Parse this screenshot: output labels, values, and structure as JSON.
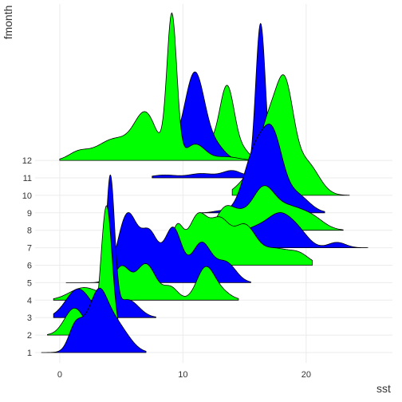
{
  "chart_data": {
    "type": "ridgeline",
    "xlabel": "sst",
    "ylabel": "fmonth",
    "xlim": [
      -2,
      27
    ],
    "x_ticks": [
      0,
      10,
      20
    ],
    "categories": [
      "1",
      "2",
      "3",
      "4",
      "5",
      "6",
      "7",
      "8",
      "9",
      "10",
      "11",
      "12"
    ],
    "grid": true,
    "fill_colors": [
      "#0000FF",
      "#00FF00"
    ],
    "series": [
      {
        "category": "1",
        "fill": "#0000FF",
        "range": [
          -1.5,
          7.0
        ],
        "peaks": [
          [
            1.2,
            0.45,
            0.5
          ],
          [
            2.3,
            0.82,
            0.9
          ],
          [
            3.2,
            0.86,
            0.6
          ],
          [
            4.1,
            0.8,
            0.8
          ],
          [
            5.3,
            0.35,
            0.8
          ]
        ]
      },
      {
        "category": "2",
        "fill": "#00FF00",
        "range": [
          -1.0,
          5.2
        ],
        "peaks": [
          [
            1.2,
            0.75,
            0.8
          ],
          [
            3.8,
            3.6,
            0.45
          ]
        ]
      },
      {
        "category": "3",
        "fill": "#0000FF",
        "range": [
          -0.5,
          7.8
        ],
        "peaks": [
          [
            1.5,
            0.8,
            1.0
          ],
          [
            4.1,
            3.8,
            0.35
          ],
          [
            5.5,
            0.5,
            0.9
          ]
        ]
      },
      {
        "category": "4",
        "fill": "#00FF00",
        "range": [
          -0.5,
          14.5
        ],
        "peaks": [
          [
            2.0,
            0.35,
            1.2
          ],
          [
            5.0,
            0.9,
            0.7
          ],
          [
            7.0,
            1.0,
            0.8
          ],
          [
            9.0,
            0.35,
            0.6
          ],
          [
            11.8,
            0.85,
            0.7
          ],
          [
            13.0,
            0.25,
            0.8
          ]
        ]
      },
      {
        "category": "5",
        "fill": "#0000FF",
        "range": [
          0.5,
          15.5
        ],
        "peaks": [
          [
            5.5,
            1.9,
            0.8
          ],
          [
            7.3,
            1.3,
            0.7
          ],
          [
            9.2,
            1.5,
            0.7
          ],
          [
            11.5,
            1.1,
            0.8
          ],
          [
            13.5,
            0.55,
            0.8
          ]
        ]
      },
      {
        "category": "6",
        "fill": "#00FF00",
        "range": [
          8.5,
          20.5
        ],
        "peaks": [
          [
            9.5,
            1.0,
            0.5
          ],
          [
            11.2,
            1.35,
            0.8
          ],
          [
            13.0,
            1.15,
            0.8
          ],
          [
            15.0,
            1.05,
            0.9
          ],
          [
            17.5,
            0.45,
            1.2
          ],
          [
            19.5,
            0.25,
            0.8
          ]
        ]
      },
      {
        "category": "7",
        "fill": "#0000FF",
        "range": [
          12.5,
          25.0
        ],
        "peaks": [
          [
            14.0,
            0.2,
            1.0
          ],
          [
            16.0,
            0.5,
            1.2
          ],
          [
            18.0,
            0.8,
            1.0
          ],
          [
            19.5,
            0.3,
            0.8
          ],
          [
            22.5,
            0.15,
            0.7
          ]
        ]
      },
      {
        "category": "8",
        "fill": "#00FF00",
        "range": [
          11.0,
          23.0
        ],
        "peaks": [
          [
            13.3,
            0.3,
            0.6
          ],
          [
            14.2,
            0.5,
            1.0
          ],
          [
            16.5,
            1.05,
            0.9
          ],
          [
            18.5,
            0.6,
            1.2
          ],
          [
            20.5,
            0.3,
            1.0
          ]
        ]
      },
      {
        "category": "9",
        "fill": "#0000FF",
        "range": [
          11.5,
          21.5
        ],
        "peaks": [
          [
            13.0,
            0.05,
            0.6
          ],
          [
            15.8,
            1.6,
            0.9
          ],
          [
            17.3,
            1.9,
            0.8
          ],
          [
            19.2,
            0.5,
            1.0
          ]
        ]
      },
      {
        "category": "10",
        "fill": "#00FF00",
        "range": [
          14.0,
          23.5
        ],
        "peaks": [
          [
            15.5,
            0.5,
            1.0
          ],
          [
            17.0,
            1.8,
            0.8
          ],
          [
            18.3,
            2.6,
            0.7
          ],
          [
            20.0,
            0.9,
            1.0
          ]
        ]
      },
      {
        "category": "11",
        "fill": "#0000FF",
        "range": [
          7.5,
          18.0
        ],
        "peaks": [
          [
            8.5,
            0.08,
            1.0
          ],
          [
            11.5,
            0.12,
            1.0
          ],
          [
            14.0,
            0.2,
            0.8
          ],
          [
            16.3,
            4.3,
            0.4
          ]
        ]
      },
      {
        "category": "12",
        "fill": "#00FF00",
        "range": [
          0.0,
          16.0
        ],
        "peaks": [
          [
            1.5,
            0.2,
            0.8
          ],
          [
            4.5,
            0.6,
            1.5
          ],
          [
            7.0,
            1.2,
            0.9
          ],
          [
            9.1,
            4.0,
            0.4
          ],
          [
            11.0,
            0.45,
            0.8
          ],
          [
            13.5,
            0.1,
            1.0
          ]
        ]
      },
      {
        "category": "12",
        "fill": "#0000FF",
        "range": [
          6.5,
          14.5
        ],
        "peaks": [
          [
            9.8,
            0.35,
            1.5
          ],
          [
            11.0,
            2.2,
            0.8
          ],
          [
            12.8,
            0.3,
            0.7
          ]
        ]
      },
      {
        "category": "12",
        "fill": "#00FF00",
        "range": [
          6.0,
          16.0
        ],
        "peaks": [
          [
            11.5,
            0.5,
            1.5
          ],
          [
            13.6,
            1.9,
            0.6
          ],
          [
            15.0,
            0.2,
            0.5
          ]
        ]
      }
    ]
  }
}
